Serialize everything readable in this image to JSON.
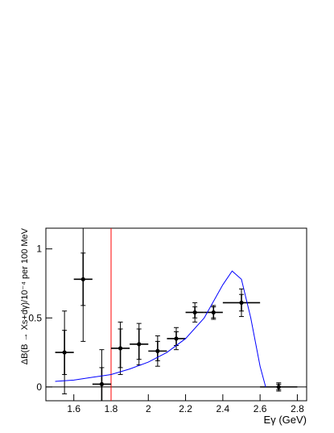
{
  "chart_data": {
    "type": "errorbar",
    "x_label": "Eγ (GeV)",
    "y_label": "ΔB(B → Xs+dγ)/10⁻⁴ per 100 MeV",
    "xlim": [
      1.45,
      2.85
    ],
    "ylim": [
      -0.1,
      1.15
    ],
    "xticks": [
      1.6,
      1.8,
      2,
      2.2,
      2.4,
      2.6,
      2.8
    ],
    "yticks": [
      0,
      0.5,
      1
    ],
    "series": [
      {
        "color": "#000000",
        "x": [
          1.55,
          1.65,
          1.75,
          1.85,
          1.95,
          2.05,
          2.15,
          2.25,
          2.35,
          2.5,
          2.7
        ],
        "xerr": [
          0.05,
          0.05,
          0.05,
          0.05,
          0.05,
          0.05,
          0.05,
          0.05,
          0.05,
          0.1,
          0.1
        ],
        "values": [
          0.25,
          0.78,
          0.02,
          0.28,
          0.31,
          0.26,
          0.35,
          0.54,
          0.54,
          0.61,
          0.0
        ],
        "yerr_total": [
          0.3,
          0.45,
          0.25,
          0.19,
          0.15,
          0.11,
          0.08,
          0.07,
          0.05,
          0.1,
          0.03
        ],
        "yerr_stat": [
          0.16,
          0.19,
          0.12,
          0.14,
          0.11,
          0.07,
          0.05,
          0.04,
          0.04,
          0.06,
          0.02
        ]
      },
      {
        "type": "line",
        "color": "#0000ff",
        "x": [
          1.5,
          1.6,
          1.7,
          1.8,
          1.9,
          2.0,
          2.1,
          2.2,
          2.3,
          2.4,
          2.45,
          2.5,
          2.55,
          2.6,
          2.63
        ],
        "values": [
          0.04,
          0.05,
          0.07,
          0.09,
          0.13,
          0.18,
          0.25,
          0.35,
          0.5,
          0.74,
          0.84,
          0.78,
          0.5,
          0.15,
          0
        ]
      }
    ],
    "vlines": [
      {
        "x": 1.8,
        "color": "#ff0000"
      }
    ],
    "hlines": [
      {
        "y": 0,
        "color": "#000000"
      }
    ]
  }
}
